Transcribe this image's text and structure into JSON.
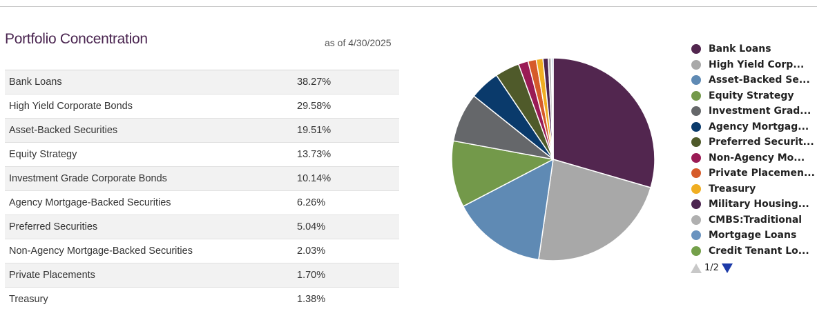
{
  "header": {
    "title": "Portfolio Concentration",
    "as_of": "as of 4/30/2025"
  },
  "table": {
    "rows": [
      {
        "name": "Bank Loans",
        "value": "38.27%"
      },
      {
        "name": "High Yield Corporate Bonds",
        "value": "29.58%"
      },
      {
        "name": "Asset-Backed Securities",
        "value": "19.51%"
      },
      {
        "name": "Equity Strategy",
        "value": "13.73%"
      },
      {
        "name": "Investment Grade Corporate Bonds",
        "value": "10.14%"
      },
      {
        "name": "Agency Mortgage-Backed Securities",
        "value": "6.26%"
      },
      {
        "name": "Preferred Securities",
        "value": "5.04%"
      },
      {
        "name": "Non-Agency Mortgage-Backed Securities",
        "value": "2.03%"
      },
      {
        "name": "Private Placements",
        "value": "1.70%"
      },
      {
        "name": "Treasury",
        "value": "1.38%"
      }
    ]
  },
  "legend": {
    "items": [
      {
        "label": "Bank Loans",
        "color": "#52264f"
      },
      {
        "label": "High Yield Corp...",
        "color": "#a8a8a8"
      },
      {
        "label": "Asset-Backed Se...",
        "color": "#5f8ab4"
      },
      {
        "label": "Equity Strategy",
        "color": "#73994a"
      },
      {
        "label": "Investment Grad...",
        "color": "#65676a"
      },
      {
        "label": "Agency Mortgag...",
        "color": "#0a3a6b"
      },
      {
        "label": "Preferred Securit...",
        "color": "#4f5a2a"
      },
      {
        "label": "Non-Agency Mo...",
        "color": "#9a1b55"
      },
      {
        "label": "Private Placemen...",
        "color": "#d65b2a"
      },
      {
        "label": "Treasury",
        "color": "#f0ae22"
      },
      {
        "label": "Military Housing...",
        "color": "#4c2550"
      },
      {
        "label": "CMBS:Traditional",
        "color": "#b0b0b0"
      },
      {
        "label": "Mortgage Loans",
        "color": "#6a93bf"
      },
      {
        "label": "Credit Tenant Lo...",
        "color": "#74a04a"
      }
    ],
    "pager": {
      "current": "1",
      "separator": "/",
      "total": "2"
    }
  },
  "chart_data": {
    "type": "pie",
    "title": "",
    "series": [
      {
        "name": "Bank Loans",
        "value": 38.27,
        "color": "#52264f"
      },
      {
        "name": "High Yield Corporate Bonds",
        "value": 29.58,
        "color": "#a8a8a8"
      },
      {
        "name": "Asset-Backed Securities",
        "value": 19.51,
        "color": "#5f8ab4"
      },
      {
        "name": "Equity Strategy",
        "value": 13.73,
        "color": "#73994a"
      },
      {
        "name": "Investment Grade Corporate Bonds",
        "value": 10.14,
        "color": "#65676a"
      },
      {
        "name": "Agency Mortgage-Backed Securities",
        "value": 6.26,
        "color": "#0a3a6b"
      },
      {
        "name": "Preferred Securities",
        "value": 5.04,
        "color": "#4f5a2a"
      },
      {
        "name": "Non-Agency Mortgage-Backed Securities",
        "value": 2.03,
        "color": "#9a1b55"
      },
      {
        "name": "Private Placements",
        "value": 1.7,
        "color": "#d65b2a"
      },
      {
        "name": "Treasury",
        "value": 1.38,
        "color": "#f0ae22"
      },
      {
        "name": "Military Housing...",
        "value": 1.1,
        "color": "#4c2550"
      },
      {
        "name": "CMBS:Traditional",
        "value": 0.6,
        "color": "#b0b0b0"
      },
      {
        "name": "Mortgage Loans",
        "value": 0.3,
        "color": "#6a93bf"
      },
      {
        "name": "Credit Tenant Lo...",
        "value": 0.1,
        "color": "#74a04a"
      }
    ],
    "legend_position": "right"
  }
}
